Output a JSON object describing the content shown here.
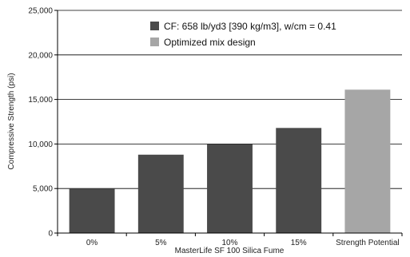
{
  "chart_data": {
    "type": "bar",
    "categories": [
      "0%",
      "5%",
      "10%",
      "15%",
      "Strength Potential"
    ],
    "values": [
      5000,
      8800,
      10000,
      11800,
      16100
    ],
    "bar_colors": [
      "#4a4a4a",
      "#4a4a4a",
      "#4a4a4a",
      "#4a4a4a",
      "#a6a6a6"
    ],
    "xlabel": "MasterLife SF 100 Silica Fume",
    "ylabel": "Compressive Strength (psi)",
    "ylim": [
      0,
      25000
    ],
    "yticks": [
      0,
      5000,
      10000,
      15000,
      20000,
      25000
    ],
    "ytick_labels": [
      "0",
      "5,000",
      "10,000",
      "15,000",
      "20,000",
      "25,000"
    ],
    "grid": true,
    "legend": {
      "placement": "top-right",
      "entries": [
        {
          "label": "CF: 658 lb/yd3 [390 kg/m3], w/cm = 0.41",
          "color": "#4a4a4a"
        },
        {
          "label": "Optimized mix design",
          "color": "#a6a6a6"
        }
      ]
    }
  }
}
